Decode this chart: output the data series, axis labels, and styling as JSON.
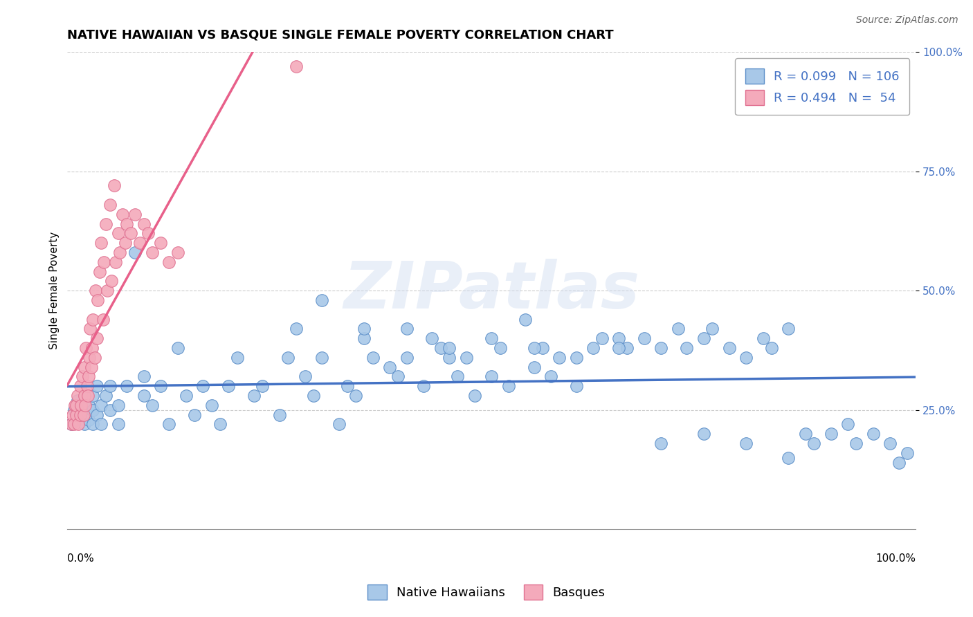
{
  "title": "NATIVE HAWAIIAN VS BASQUE SINGLE FEMALE POVERTY CORRELATION CHART",
  "source_text": "Source: ZipAtlas.com",
  "ylabel": "Single Female Poverty",
  "xlim": [
    0.0,
    1.0
  ],
  "ylim": [
    0.0,
    1.0
  ],
  "ytick_vals": [
    0.25,
    0.5,
    0.75,
    1.0
  ],
  "ytick_labels": [
    "25.0%",
    "50.0%",
    "75.0%",
    "100.0%"
  ],
  "watermark": "ZIPatlas",
  "nh_color": "#A8C8E8",
  "basque_color": "#F4AABB",
  "nh_edge_color": "#5B8EC8",
  "basque_edge_color": "#E07090",
  "nh_line_color": "#4472C4",
  "basque_line_color": "#E8608A",
  "nh_R": 0.099,
  "nh_N": 106,
  "basque_R": 0.494,
  "basque_N": 54,
  "nh_scatter_x": [
    0.005,
    0.008,
    0.01,
    0.012,
    0.015,
    0.015,
    0.02,
    0.02,
    0.02,
    0.025,
    0.025,
    0.03,
    0.03,
    0.03,
    0.035,
    0.035,
    0.04,
    0.04,
    0.045,
    0.05,
    0.05,
    0.06,
    0.06,
    0.07,
    0.08,
    0.09,
    0.09,
    0.1,
    0.11,
    0.12,
    0.13,
    0.14,
    0.15,
    0.16,
    0.17,
    0.18,
    0.19,
    0.2,
    0.22,
    0.23,
    0.25,
    0.26,
    0.27,
    0.28,
    0.29,
    0.3,
    0.32,
    0.33,
    0.34,
    0.35,
    0.36,
    0.38,
    0.39,
    0.4,
    0.42,
    0.43,
    0.44,
    0.45,
    0.46,
    0.47,
    0.48,
    0.5,
    0.51,
    0.52,
    0.54,
    0.55,
    0.56,
    0.57,
    0.58,
    0.6,
    0.62,
    0.63,
    0.65,
    0.66,
    0.68,
    0.7,
    0.72,
    0.73,
    0.75,
    0.76,
    0.78,
    0.8,
    0.82,
    0.83,
    0.85,
    0.87,
    0.88,
    0.9,
    0.92,
    0.93,
    0.95,
    0.97,
    0.98,
    0.99,
    0.3,
    0.35,
    0.4,
    0.45,
    0.5,
    0.55,
    0.6,
    0.65,
    0.7,
    0.75,
    0.8,
    0.85
  ],
  "nh_scatter_y": [
    0.22,
    0.25,
    0.23,
    0.27,
    0.24,
    0.26,
    0.22,
    0.24,
    0.28,
    0.23,
    0.26,
    0.25,
    0.22,
    0.28,
    0.24,
    0.3,
    0.26,
    0.22,
    0.28,
    0.25,
    0.3,
    0.22,
    0.26,
    0.3,
    0.58,
    0.28,
    0.32,
    0.26,
    0.3,
    0.22,
    0.38,
    0.28,
    0.24,
    0.3,
    0.26,
    0.22,
    0.3,
    0.36,
    0.28,
    0.3,
    0.24,
    0.36,
    0.42,
    0.32,
    0.28,
    0.36,
    0.22,
    0.3,
    0.28,
    0.4,
    0.36,
    0.34,
    0.32,
    0.36,
    0.3,
    0.4,
    0.38,
    0.36,
    0.32,
    0.36,
    0.28,
    0.32,
    0.38,
    0.3,
    0.44,
    0.34,
    0.38,
    0.32,
    0.36,
    0.3,
    0.38,
    0.4,
    0.4,
    0.38,
    0.4,
    0.38,
    0.42,
    0.38,
    0.4,
    0.42,
    0.38,
    0.36,
    0.4,
    0.38,
    0.42,
    0.2,
    0.18,
    0.2,
    0.22,
    0.18,
    0.2,
    0.18,
    0.14,
    0.16,
    0.48,
    0.42,
    0.42,
    0.38,
    0.4,
    0.38,
    0.36,
    0.38,
    0.18,
    0.2,
    0.18,
    0.15
  ],
  "basque_scatter_x": [
    0.005,
    0.006,
    0.008,
    0.009,
    0.01,
    0.01,
    0.012,
    0.013,
    0.015,
    0.015,
    0.016,
    0.018,
    0.019,
    0.02,
    0.02,
    0.021,
    0.022,
    0.023,
    0.024,
    0.025,
    0.026,
    0.027,
    0.028,
    0.029,
    0.03,
    0.032,
    0.033,
    0.035,
    0.036,
    0.038,
    0.04,
    0.042,
    0.043,
    0.045,
    0.047,
    0.05,
    0.052,
    0.055,
    0.057,
    0.06,
    0.062,
    0.065,
    0.068,
    0.07,
    0.075,
    0.08,
    0.085,
    0.09,
    0.095,
    0.1,
    0.11,
    0.12,
    0.13,
    0.27
  ],
  "basque_scatter_y": [
    0.22,
    0.24,
    0.22,
    0.26,
    0.24,
    0.26,
    0.28,
    0.22,
    0.3,
    0.24,
    0.26,
    0.32,
    0.24,
    0.28,
    0.34,
    0.26,
    0.38,
    0.3,
    0.28,
    0.32,
    0.36,
    0.42,
    0.34,
    0.38,
    0.44,
    0.36,
    0.5,
    0.4,
    0.48,
    0.54,
    0.6,
    0.44,
    0.56,
    0.64,
    0.5,
    0.68,
    0.52,
    0.72,
    0.56,
    0.62,
    0.58,
    0.66,
    0.6,
    0.64,
    0.62,
    0.66,
    0.6,
    0.64,
    0.62,
    0.58,
    0.6,
    0.56,
    0.58,
    0.97
  ],
  "grid_color": "#CCCCCC",
  "background_color": "#FFFFFF",
  "title_fontsize": 13,
  "legend_fontsize": 13,
  "axis_label_fontsize": 11,
  "source_fontsize": 10
}
